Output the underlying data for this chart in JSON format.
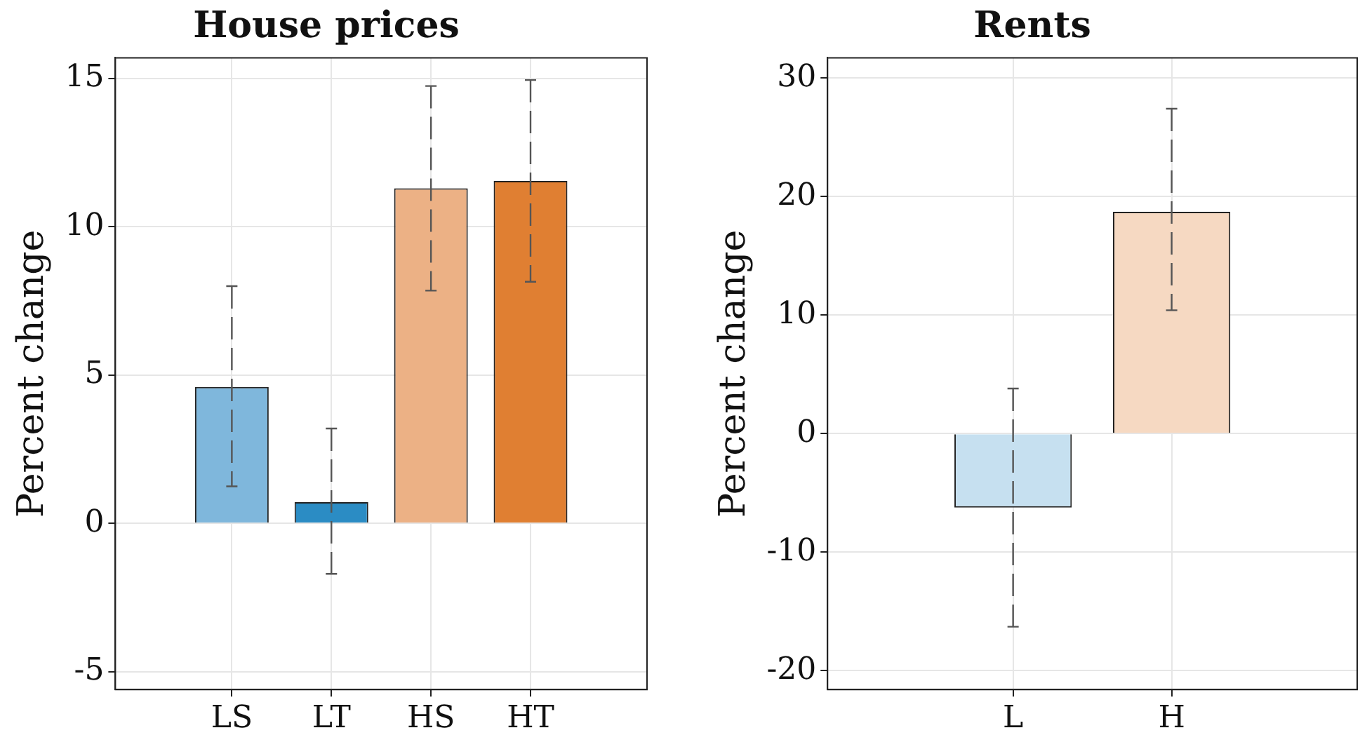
{
  "chart_data": [
    {
      "type": "bar",
      "title": "House prices",
      "ylabel": "Percent change",
      "categories": [
        "LS",
        "LT",
        "HS",
        "HT"
      ],
      "values": [
        4.6,
        0.72,
        11.3,
        11.55
      ],
      "colors": [
        "#7fb7dc",
        "#2b8cc4",
        "#ecb185",
        "#e07f32"
      ],
      "errors": [
        [
          1.25,
          8.0
        ],
        [
          -1.7,
          3.2
        ],
        [
          7.85,
          14.75
        ],
        [
          8.15,
          14.95
        ]
      ],
      "ylim": [
        -5.6,
        15.7
      ],
      "yticks": [
        -5,
        0,
        5,
        10,
        15
      ],
      "grid": true,
      "legend": false
    },
    {
      "type": "bar",
      "title": "Rents",
      "ylabel": "Percent change",
      "categories": [
        "L",
        "H"
      ],
      "values": [
        -6.25,
        18.7
      ],
      "colors": [
        "#c6e0f0",
        "#f6d9c2"
      ],
      "errors": [
        [
          -16.3,
          3.8
        ],
        [
          10.4,
          27.4
        ]
      ],
      "ylim": [
        -21.6,
        31.7
      ],
      "yticks": [
        -20,
        -10,
        0,
        10,
        20,
        30
      ],
      "grid": true,
      "legend": false
    }
  ]
}
